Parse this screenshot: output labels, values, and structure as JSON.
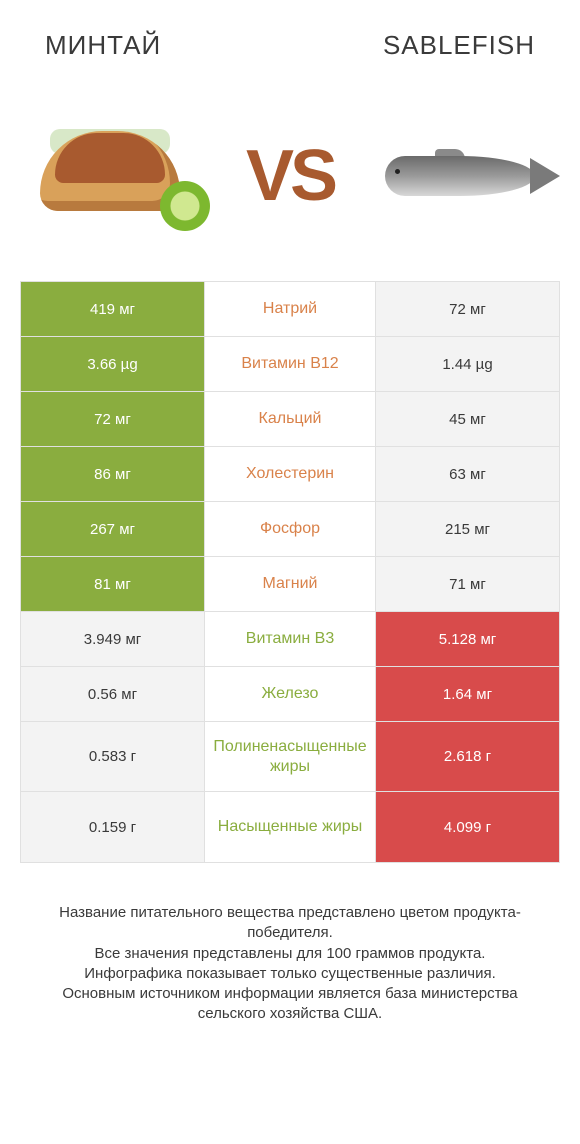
{
  "header": {
    "left_title": "МИНТАЙ",
    "right_title": "SABLEFISH",
    "vs_label": "VS"
  },
  "colors": {
    "left_highlight": "#8aad3f",
    "right_highlight": "#d84b4b",
    "left_dim": "#f3f3f3",
    "right_dim": "#f3f3f3",
    "nutrient_left": "#d9824a",
    "nutrient_right": "#8aad3f",
    "border": "#e0e0e0",
    "text_on_highlight": "#ffffff",
    "text_dim": "#3a3a3a",
    "vs_color": "#a85a2f"
  },
  "rows": [
    {
      "nutrient": "Натрий",
      "left": "419 мг",
      "right": "72 мг",
      "winner": "left"
    },
    {
      "nutrient": "Витамин B12",
      "left": "3.66 µg",
      "right": "1.44 µg",
      "winner": "left"
    },
    {
      "nutrient": "Кальций",
      "left": "72 мг",
      "right": "45 мг",
      "winner": "left"
    },
    {
      "nutrient": "Холестерин",
      "left": "86 мг",
      "right": "63 мг",
      "winner": "left"
    },
    {
      "nutrient": "Фосфор",
      "left": "267 мг",
      "right": "215 мг",
      "winner": "left"
    },
    {
      "nutrient": "Магний",
      "left": "81 мг",
      "right": "71 мг",
      "winner": "left"
    },
    {
      "nutrient": "Витамин B3",
      "left": "3.949 мг",
      "right": "5.128 мг",
      "winner": "right"
    },
    {
      "nutrient": "Железо",
      "left": "0.56 мг",
      "right": "1.64 мг",
      "winner": "right"
    },
    {
      "nutrient": "Полиненасыщенные жиры",
      "left": "0.583 г",
      "right": "2.618 г",
      "winner": "right",
      "tall": true
    },
    {
      "nutrient": "Насыщенные жиры",
      "left": "0.159 г",
      "right": "4.099 г",
      "winner": "right",
      "tall": true
    }
  ],
  "footer": {
    "line1": "Название питательного вещества представлено цветом продукта-победителя.",
    "line2": "Все значения представлены для 100 граммов продукта.",
    "line3": "Инфографика показывает только существенные различия.",
    "line4": "Основным источником информации является база министерства сельского хозяйства США."
  }
}
